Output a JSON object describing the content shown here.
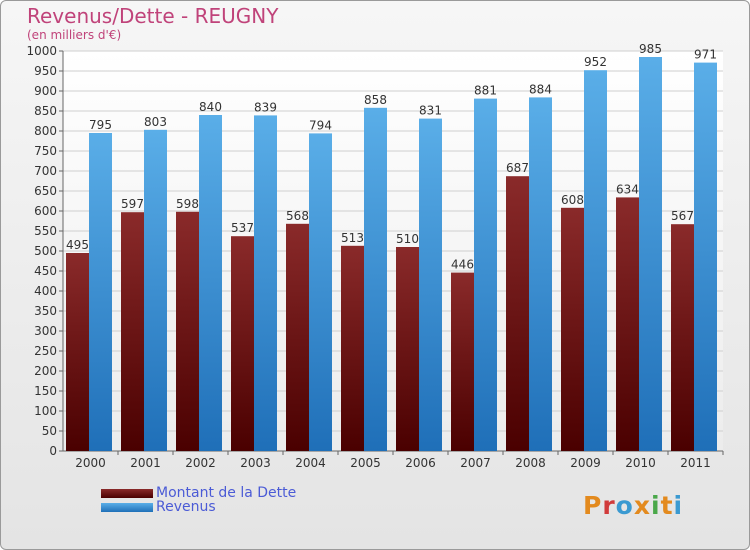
{
  "header": {
    "title": "Revenus/Dette - REUGNY",
    "subtitle": "(en milliers d'€)"
  },
  "chart_data": {
    "type": "bar",
    "title": "Revenus/Dette - REUGNY",
    "subtitle": "(en milliers d'€)",
    "categories": [
      "2000",
      "2001",
      "2002",
      "2003",
      "2004",
      "2005",
      "2006",
      "2007",
      "2008",
      "2009",
      "2010",
      "2011"
    ],
    "series": [
      {
        "name": "Montant de la Dette",
        "color": "#7a1616",
        "values": [
          495,
          597,
          598,
          537,
          568,
          513,
          510,
          446,
          687,
          608,
          634,
          567
        ]
      },
      {
        "name": "Revenus",
        "color": "#3d8fd6",
        "values": [
          795,
          803,
          840,
          839,
          794,
          858,
          831,
          881,
          884,
          952,
          985,
          971
        ]
      }
    ],
    "ylim": [
      0,
      1000
    ],
    "ytick_step": 50,
    "grid": true,
    "legend_position": "bottom-left"
  },
  "legend": {
    "items": [
      {
        "label": "Montant de la Dette",
        "color": "#7a1616",
        "text_color": "#4b5bd6"
      },
      {
        "label": "Revenus",
        "color": "#3d8fd6",
        "text_color": "#4b5bd6"
      }
    ]
  },
  "logo": {
    "letters": [
      {
        "ch": "P",
        "color": "#e38a1e"
      },
      {
        "ch": "r",
        "color": "#d13b3b"
      },
      {
        "ch": "o",
        "color": "#3b9ad1"
      },
      {
        "ch": "x",
        "color": "#e38a1e"
      },
      {
        "ch": "i",
        "color": "#4aa84a"
      },
      {
        "ch": "t",
        "color": "#e38a1e"
      },
      {
        "ch": "i",
        "color": "#3b9ad1"
      }
    ]
  }
}
